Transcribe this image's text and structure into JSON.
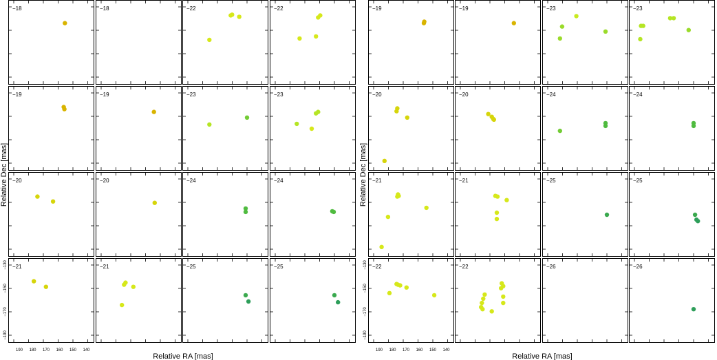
{
  "chart_data": [
    {
      "type": "scatter",
      "title": "",
      "xlabel": "Relative RA [mas]",
      "ylabel": "Relative Dec [mas]",
      "xlim": [
        195,
        135
      ],
      "ylim": [
        -190,
        -130
      ],
      "x_ticks": [
        "190",
        "180",
        "170",
        "160",
        "150",
        "140"
      ],
      "y_ticks": [
        "-130",
        "-150",
        "-170",
        "-190"
      ],
      "grid": false,
      "panels": [
        {
          "label": "−18",
          "points": [
            {
              "x": 155.2,
              "y": -146.5,
              "color": "#d9b400"
            }
          ]
        },
        {
          "label": "−18",
          "points": []
        },
        {
          "label": "−22",
          "points": [
            {
              "x": 160.0,
              "y": -140.5,
              "color": "#d6e81a"
            },
            {
              "x": 161.0,
              "y": -141.0,
              "color": "#d6e81a"
            },
            {
              "x": 155.0,
              "y": -142.0,
              "color": "#d6e81a"
            },
            {
              "x": 176.0,
              "y": -158.5,
              "color": "#d6e81a"
            }
          ]
        },
        {
          "label": "−22",
          "points": [
            {
              "x": 159.5,
              "y": -141.0,
              "color": "#d6e81a"
            },
            {
              "x": 161.0,
              "y": -142.5,
              "color": "#d6e81a"
            },
            {
              "x": 162.5,
              "y": -156.0,
              "color": "#d6e81a"
            },
            {
              "x": 174.0,
              "y": -157.5,
              "color": "#d6e81a"
            }
          ]
        },
        {
          "label": "−19",
          "points": [
            {
              "x": 155.5,
              "y": -145.5,
              "color": "#d9b400"
            },
            {
              "x": 155.8,
              "y": -146.5,
              "color": "#d9b400"
            }
          ]
        },
        {
          "label": "−19",
          "points": [
            {
              "x": 153.5,
              "y": -146.5,
              "color": "#d9b400"
            }
          ]
        },
        {
          "label": "−23",
          "points": [
            {
              "x": 181.0,
              "y": -149.0,
              "color": "#9adb2a"
            },
            {
              "x": 171.0,
              "y": -141.5,
              "color": "#c8ea1f"
            },
            {
              "x": 182.5,
              "y": -157.5,
              "color": "#9adb2a"
            },
            {
              "x": 150.5,
              "y": -152.5,
              "color": "#9adb2a"
            }
          ]
        },
        {
          "label": "−23",
          "points": [
            {
              "x": 186.5,
              "y": -148.5,
              "color": "#b5e524"
            },
            {
              "x": 185.0,
              "y": -148.5,
              "color": "#b5e524"
            },
            {
              "x": 187.0,
              "y": -158.0,
              "color": "#b5e524"
            },
            {
              "x": 163.5,
              "y": -143.0,
              "color": "#b5e524"
            },
            {
              "x": 166.0,
              "y": -143.0,
              "color": "#b5e524"
            },
            {
              "x": 153.0,
              "y": -151.5,
              "color": "#9adb2a"
            }
          ]
        },
        {
          "label": "−19",
          "points": [
            {
              "x": 156.0,
              "y": -145.0,
              "color": "#d9b400"
            },
            {
              "x": 155.5,
              "y": -146.5,
              "color": "#d9b400"
            }
          ]
        },
        {
          "label": "−19",
          "points": [
            {
              "x": 154.0,
              "y": -148.5,
              "color": "#d9b400"
            }
          ]
        },
        {
          "label": "−23",
          "points": [
            {
              "x": 176.0,
              "y": -157.5,
              "color": "#b5e524"
            },
            {
              "x": 149.5,
              "y": -152.5,
              "color": "#73cc36"
            }
          ]
        },
        {
          "label": "−23",
          "points": [
            {
              "x": 176.0,
              "y": -157.0,
              "color": "#b5e524"
            },
            {
              "x": 165.5,
              "y": -160.5,
              "color": "#d6e81a"
            },
            {
              "x": 161.0,
              "y": -148.5,
              "color": "#b5e524"
            },
            {
              "x": 162.5,
              "y": -149.5,
              "color": "#b5e524"
            }
          ]
        },
        {
          "label": "−20",
          "points": [
            {
              "x": 174.5,
              "y": -146.0,
              "color": "#d6d50a"
            },
            {
              "x": 175.0,
              "y": -148.0,
              "color": "#d6d50a"
            },
            {
              "x": 167.5,
              "y": -152.5,
              "color": "#d6d50a"
            },
            {
              "x": 183.5,
              "y": -183.5,
              "color": "#d6d50a"
            }
          ]
        },
        {
          "label": "−20",
          "points": [
            {
              "x": 171.5,
              "y": -150.0,
              "color": "#d6d50a"
            },
            {
              "x": 169.0,
              "y": -152.0,
              "color": "#d6d50a"
            },
            {
              "x": 167.5,
              "y": -154.0,
              "color": "#d6d50a"
            },
            {
              "x": 168.0,
              "y": -153.5,
              "color": "#d6d50a"
            }
          ]
        },
        {
          "label": "−24",
          "points": [
            {
              "x": 182.5,
              "y": -162.0,
              "color": "#73cc36"
            },
            {
              "x": 150.5,
              "y": -156.5,
              "color": "#4fbb3f"
            },
            {
              "x": 150.5,
              "y": -158.5,
              "color": "#4fbb3f"
            }
          ]
        },
        {
          "label": "−24",
          "points": [
            {
              "x": 149.5,
              "y": -156.5,
              "color": "#4fbb3f"
            },
            {
              "x": 149.5,
              "y": -158.5,
              "color": "#4fbb3f"
            }
          ]
        },
        {
          "label": "−20",
          "points": [
            {
              "x": 174.5,
              "y": -147.5,
              "color": "#d6d50a"
            },
            {
              "x": 163.5,
              "y": -151.0,
              "color": "#d6d50a"
            }
          ]
        },
        {
          "label": "−20",
          "points": [
            {
              "x": 153.5,
              "y": -152.0,
              "color": "#d6d50a"
            }
          ]
        },
        {
          "label": "−24",
          "points": [
            {
              "x": 150.5,
              "y": -156.0,
              "color": "#4fbb3f"
            },
            {
              "x": 150.5,
              "y": -158.5,
              "color": "#4fbb3f"
            }
          ]
        },
        {
          "label": "−24",
          "points": [
            {
              "x": 151.0,
              "y": -158.0,
              "color": "#4fbb3f"
            },
            {
              "x": 150.0,
              "y": -158.5,
              "color": "#4fbb3f"
            }
          ]
        },
        {
          "label": "−21",
          "points": [
            {
              "x": 174.0,
              "y": -146.0,
              "color": "#d6e81a"
            },
            {
              "x": 173.5,
              "y": -147.0,
              "color": "#d6e81a"
            },
            {
              "x": 174.5,
              "y": -147.5,
              "color": "#d6e81a"
            },
            {
              "x": 154.0,
              "y": -155.5,
              "color": "#d6e81a"
            },
            {
              "x": 181.0,
              "y": -162.0,
              "color": "#d6e81a"
            },
            {
              "x": 185.5,
              "y": -183.5,
              "color": "#d6e81a"
            }
          ]
        },
        {
          "label": "−21",
          "points": [
            {
              "x": 165.0,
              "y": -147.5,
              "color": "#d6e81a"
            },
            {
              "x": 166.5,
              "y": -147.0,
              "color": "#d6e81a"
            },
            {
              "x": 158.5,
              "y": -150.0,
              "color": "#d6e81a"
            },
            {
              "x": 165.5,
              "y": -159.0,
              "color": "#d6e81a"
            },
            {
              "x": 165.5,
              "y": -163.5,
              "color": "#d6e81a"
            }
          ]
        },
        {
          "label": "−25",
          "points": [
            {
              "x": 149.5,
              "y": -160.5,
              "color": "#3aa94e"
            }
          ]
        },
        {
          "label": "−25",
          "points": [
            {
              "x": 148.5,
              "y": -160.5,
              "color": "#3aa94e"
            },
            {
              "x": 147.5,
              "y": -164.0,
              "color": "#2e9e5a"
            },
            {
              "x": 146.5,
              "y": -165.0,
              "color": "#2e9e5a"
            }
          ]
        },
        {
          "label": "−21",
          "points": [
            {
              "x": 177.0,
              "y": -146.5,
              "color": "#d6d50a"
            },
            {
              "x": 168.5,
              "y": -150.5,
              "color": "#d6d50a"
            }
          ]
        },
        {
          "label": "−21",
          "points": [
            {
              "x": 175.0,
              "y": -149.0,
              "color": "#d6e81a"
            },
            {
              "x": 174.0,
              "y": -147.5,
              "color": "#d6e81a"
            },
            {
              "x": 168.5,
              "y": -150.5,
              "color": "#d6e81a"
            },
            {
              "x": 176.5,
              "y": -163.5,
              "color": "#d6e81a"
            }
          ]
        },
        {
          "label": "−25",
          "points": [
            {
              "x": 150.5,
              "y": -156.5,
              "color": "#3aa94e"
            },
            {
              "x": 148.5,
              "y": -161.0,
              "color": "#2e9e5a"
            }
          ]
        },
        {
          "label": "−25",
          "points": [
            {
              "x": 149.5,
              "y": -156.5,
              "color": "#3aa94e"
            },
            {
              "x": 147.0,
              "y": -161.5,
              "color": "#2e9e5a"
            }
          ]
        },
        {
          "label": "−22",
          "points": [
            {
              "x": 175.0,
              "y": -148.5,
              "color": "#d6e81a"
            },
            {
              "x": 172.5,
              "y": -149.5,
              "color": "#d6e81a"
            },
            {
              "x": 174.0,
              "y": -149.0,
              "color": "#d6e81a"
            },
            {
              "x": 168.0,
              "y": -151.0,
              "color": "#d6e81a"
            },
            {
              "x": 180.0,
              "y": -155.0,
              "color": "#d6e81a"
            },
            {
              "x": 148.5,
              "y": -156.5,
              "color": "#d6e81a"
            }
          ]
        },
        {
          "label": "−22",
          "points": [
            {
              "x": 162.0,
              "y": -148.0,
              "color": "#d6e81a"
            },
            {
              "x": 161.0,
              "y": -150.0,
              "color": "#d6e81a"
            },
            {
              "x": 162.5,
              "y": -151.5,
              "color": "#d6e81a"
            },
            {
              "x": 174.0,
              "y": -156.0,
              "color": "#d6e81a"
            },
            {
              "x": 175.0,
              "y": -159.0,
              "color": "#d6e81a"
            },
            {
              "x": 176.0,
              "y": -162.0,
              "color": "#d6e81a"
            },
            {
              "x": 176.5,
              "y": -165.0,
              "color": "#d6e81a"
            },
            {
              "x": 175.5,
              "y": -166.5,
              "color": "#d6e81a"
            },
            {
              "x": 169.0,
              "y": -168.0,
              "color": "#d6e81a"
            },
            {
              "x": 161.0,
              "y": -157.5,
              "color": "#d6e81a"
            },
            {
              "x": 161.0,
              "y": -162.0,
              "color": "#d6e81a"
            }
          ]
        },
        {
          "label": "−26",
          "points": []
        },
        {
          "label": "−26",
          "points": [
            {
              "x": 149.5,
              "y": -166.5,
              "color": "#2e9e5a"
            }
          ]
        }
      ]
    }
  ]
}
